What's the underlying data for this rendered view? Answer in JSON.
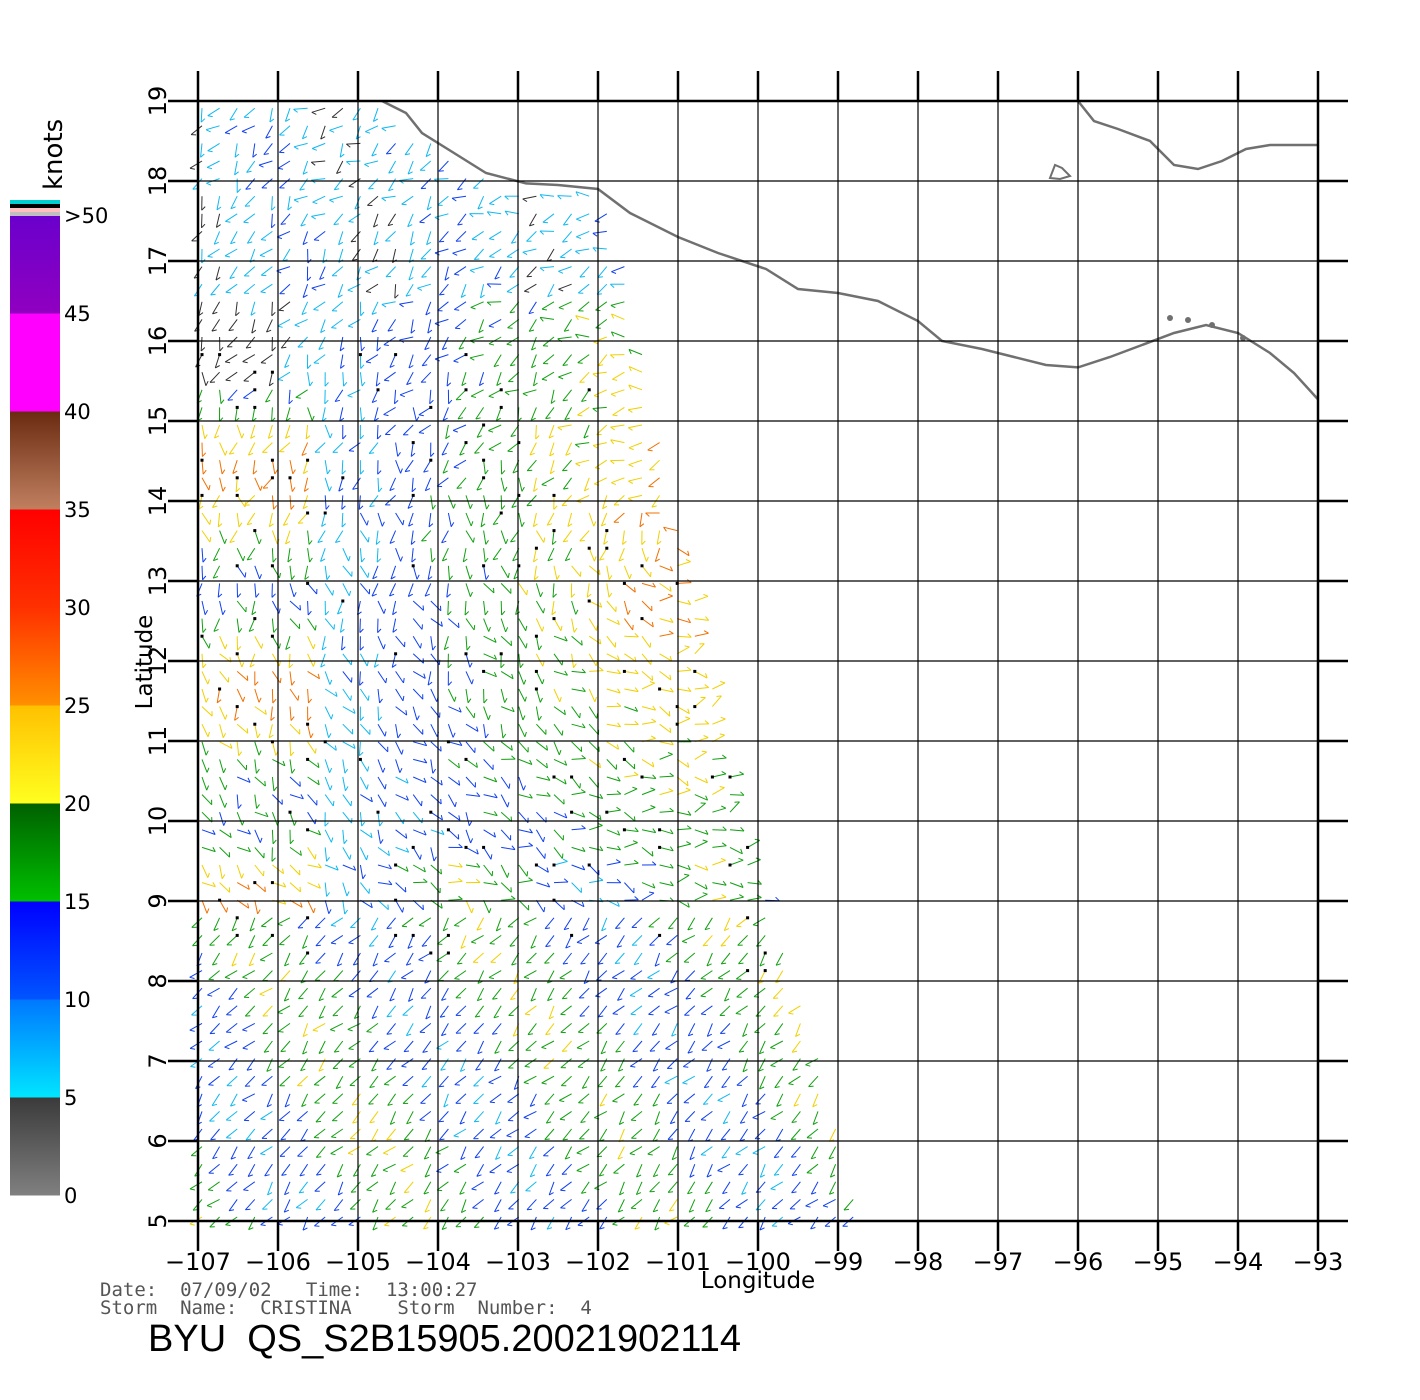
{
  "colorbar": {
    "unit": "knots",
    "labels": [
      "0",
      "5",
      "10",
      "15",
      "20",
      "25",
      "30",
      "35",
      "40",
      "45",
      ">50"
    ],
    "colors": {
      "gray": "#808080",
      "cyan": "#00e5ff",
      "blue": "#0033ff",
      "green": "#00c000",
      "yellow": "#ffd700",
      "orange": "#ff6a00",
      "red": "#ff2000",
      "brown": "#6a2a10",
      "magenta": "#ff00ff",
      "purple": "#6a00cc",
      "black": "#000000"
    }
  },
  "axes": {
    "xlabel": "Longitude",
    "ylabel": "Latitude",
    "x_ticks": [
      "−107",
      "−106",
      "−105",
      "−104",
      "−103",
      "−102",
      "−101",
      "−100",
      "−99",
      "−98",
      "−97",
      "−96",
      "−95",
      "−94",
      "−93"
    ],
    "y_ticks": [
      "5",
      "6",
      "7",
      "8",
      "9",
      "10",
      "11",
      "12",
      "13",
      "14",
      "15",
      "16",
      "17",
      "18",
      "19"
    ],
    "lon_range": [
      -107,
      -93
    ],
    "lat_range": [
      5,
      19
    ]
  },
  "info": {
    "date_line": "Date:  07/09/02   Time:  13:00:27",
    "storm_line": "Storm  Name:  CRISTINA    Storm  Number:  4"
  },
  "title": "BYU  QS_S2B15905.20021902114",
  "coastline": [
    [
      -104.7,
      19.0
    ],
    [
      -104.4,
      18.85
    ],
    [
      -104.2,
      18.6
    ],
    [
      -103.8,
      18.35
    ],
    [
      -103.4,
      18.1
    ],
    [
      -102.9,
      17.97
    ],
    [
      -102.5,
      17.95
    ],
    [
      -102.0,
      17.9
    ],
    [
      -101.6,
      17.6
    ],
    [
      -101.0,
      17.3
    ],
    [
      -100.5,
      17.1
    ],
    [
      -99.9,
      16.9
    ],
    [
      -99.5,
      16.65
    ],
    [
      -99.0,
      16.6
    ],
    [
      -98.5,
      16.5
    ],
    [
      -98.0,
      16.25
    ],
    [
      -97.7,
      16.0
    ],
    [
      -97.2,
      15.9
    ],
    [
      -96.8,
      15.8
    ],
    [
      -96.4,
      15.7
    ],
    [
      -96.0,
      15.67
    ],
    [
      -95.6,
      15.8
    ],
    [
      -95.2,
      15.95
    ],
    [
      -94.8,
      16.1
    ],
    [
      -94.4,
      16.2
    ],
    [
      -94.0,
      16.1
    ],
    [
      -93.6,
      15.85
    ],
    [
      -93.3,
      15.6
    ],
    [
      -93.0,
      15.27
    ]
  ],
  "coastline_gulf": [
    [
      -96.0,
      19.0
    ],
    [
      -95.8,
      18.75
    ],
    [
      -95.5,
      18.65
    ],
    [
      -95.1,
      18.5
    ],
    [
      -94.8,
      18.2
    ],
    [
      -94.5,
      18.15
    ],
    [
      -94.2,
      18.25
    ],
    [
      -93.9,
      18.4
    ],
    [
      -93.6,
      18.45
    ],
    [
      -93.0,
      18.45
    ]
  ],
  "swath": {
    "left_edge": [
      [
        -107.0,
        19.0
      ],
      [
        -107.0,
        5.0
      ]
    ],
    "right_edge": [
      [
        -101.7,
        17.1
      ],
      [
        -100.2,
        10.0
      ],
      [
        -99.5,
        8.0
      ],
      [
        -98.7,
        5.0
      ]
    ]
  }
}
